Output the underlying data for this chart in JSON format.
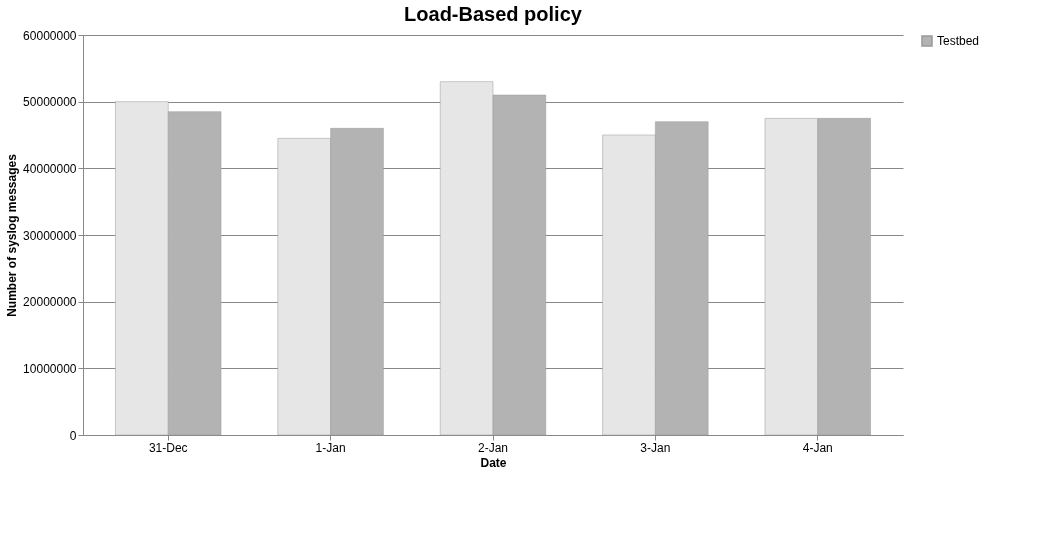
{
  "chart_data": {
    "type": "bar",
    "title": "Load-Based policy",
    "xlabel": "Date",
    "ylabel": "Number of syslog messages",
    "categories": [
      "31-Dec",
      "1-Jan",
      "2-Jan",
      "3-Jan",
      "4-Jan"
    ],
    "series": [
      {
        "color": "#e6e6e6",
        "values": [
          50000000,
          44500000,
          53000000,
          45000000,
          47500000
        ]
      },
      {
        "name": "Testbed",
        "color": "#b3b3b3",
        "values": [
          48500000,
          46000000,
          51000000,
          47000000,
          47500000
        ]
      }
    ],
    "ylim": [
      0,
      60000000
    ],
    "yticks": [
      0,
      10000000,
      20000000,
      30000000,
      40000000,
      50000000,
      60000000
    ],
    "grid": "y",
    "legend": "right"
  }
}
